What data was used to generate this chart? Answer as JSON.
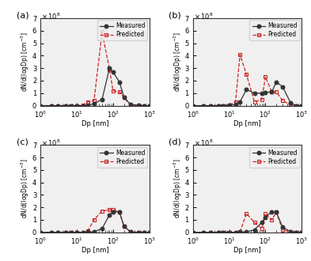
{
  "panels": [
    "(a)",
    "(b)",
    "(c)",
    "(d)"
  ],
  "xlabel": "Dp [nm]",
  "ylim": [
    0,
    700000000.0
  ],
  "xlim": [
    1,
    1000
  ],
  "yticks": [
    0,
    100000000.0,
    200000000.0,
    300000000.0,
    400000000.0,
    500000000.0,
    600000000.0,
    700000000.0
  ],
  "yticklabels": [
    "0",
    "1",
    "2",
    "3",
    "4",
    "5",
    "6",
    "7"
  ],
  "a_measured_x": [
    1,
    2,
    3,
    5,
    7,
    10,
    15,
    20,
    30,
    50,
    80,
    100,
    150,
    200,
    300,
    500,
    700,
    1000
  ],
  "a_measured_y": [
    0,
    0,
    0,
    0,
    0,
    0,
    0,
    2000000.0,
    15000000.0,
    50000000.0,
    300000000.0,
    270000000.0,
    190000000.0,
    70000000.0,
    10000000.0,
    2000000.0,
    0.0,
    0.0
  ],
  "a_predicted_x": [
    1,
    2,
    3,
    5,
    7,
    10,
    15,
    20,
    30,
    50,
    80,
    100,
    150,
    200,
    300,
    500,
    700,
    1000
  ],
  "a_predicted_y": [
    0,
    0,
    0,
    0,
    0,
    0,
    5000000.0,
    30000000.0,
    40000000.0,
    590000000.0,
    290000000.0,
    120000000.0,
    110000000.0,
    65000000.0,
    5000000.0,
    0.0,
    0.0,
    0.0
  ],
  "b_measured_x": [
    1,
    2,
    3,
    5,
    7,
    10,
    15,
    20,
    30,
    50,
    80,
    100,
    150,
    200,
    300,
    500,
    700,
    1000
  ],
  "b_measured_y": [
    0,
    0,
    0,
    0,
    0,
    2000000.0,
    10000000.0,
    30000000.0,
    130000000.0,
    100000000.0,
    100000000.0,
    105000000.0,
    110000000.0,
    190000000.0,
    150000000.0,
    20000000.0,
    0.0,
    0.0
  ],
  "b_predicted_x": [
    1,
    2,
    3,
    5,
    7,
    10,
    15,
    20,
    30,
    50,
    80,
    100,
    150,
    200,
    300,
    500,
    700,
    1000
  ],
  "b_predicted_y": [
    0,
    0,
    0,
    0,
    0,
    5000000.0,
    30000000.0,
    410000000.0,
    250000000.0,
    30000000.0,
    50000000.0,
    230000000.0,
    110000000.0,
    110000000.0,
    40000000.0,
    5000000.0,
    0.0,
    0.0
  ],
  "c_measured_x": [
    1,
    2,
    3,
    5,
    7,
    10,
    15,
    20,
    30,
    50,
    80,
    100,
    150,
    200,
    300,
    500,
    700,
    1000
  ],
  "c_measured_y": [
    0,
    0,
    0,
    0,
    0,
    0,
    0,
    2000000.0,
    5000000.0,
    30000000.0,
    140000000.0,
    165000000.0,
    165000000.0,
    50000000.0,
    3000000.0,
    0.0,
    0.0,
    0.0
  ],
  "c_predicted_x": [
    1,
    2,
    3,
    5,
    7,
    10,
    15,
    20,
    30,
    50,
    80,
    100,
    150,
    200,
    300,
    500,
    700,
    1000
  ],
  "c_predicted_y": [
    0,
    0,
    0,
    0,
    0,
    0,
    0,
    10000000.0,
    100000000.0,
    170000000.0,
    180000000.0,
    180000000.0,
    160000000.0,
    50000000.0,
    4000000.0,
    0.0,
    0.0,
    0.0
  ],
  "d_measured_x": [
    1,
    2,
    3,
    5,
    7,
    10,
    15,
    20,
    30,
    50,
    80,
    100,
    150,
    200,
    300,
    500,
    700,
    1000
  ],
  "d_measured_y": [
    0,
    0,
    0,
    0,
    0,
    0,
    0,
    2000000.0,
    4000000.0,
    20000000.0,
    80000000.0,
    120000000.0,
    165000000.0,
    160000000.0,
    40000000.0,
    5000000.0,
    0.0,
    0.0
  ],
  "d_predicted_x": [
    1,
    2,
    3,
    5,
    7,
    10,
    15,
    20,
    30,
    50,
    80,
    100,
    150,
    200,
    300,
    500,
    700,
    1000
  ],
  "d_predicted_y": [
    0,
    0,
    0,
    0,
    0,
    0,
    0,
    2000000.0,
    150000000.0,
    80000000.0,
    30000000.0,
    150000000.0,
    100000000.0,
    160000000.0,
    20000000.0,
    2000000.0,
    0.0,
    0.0
  ],
  "measured_color": "#333333",
  "predicted_color": "#cc2222",
  "measured_marker": "o",
  "predicted_marker": "s",
  "measured_ls": "-",
  "predicted_ls": "--",
  "measured_markersize": 3.5,
  "predicted_markersize": 3.5,
  "linewidth": 0.9,
  "background_color": "#f0f0f0"
}
